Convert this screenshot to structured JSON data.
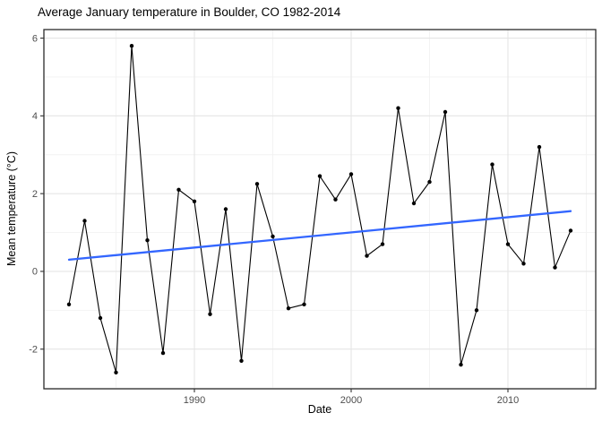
{
  "title": "Average January temperature in Boulder, CO 1982-2014",
  "colors": {
    "background": "#FFFFFF",
    "series_line": "#000000",
    "point": "#000000",
    "trend_line": "#3366FF",
    "grid_major": "#E5E5E5",
    "grid_minor": "#F2F2F2",
    "panel_border": "#2B2B2B",
    "tick_mark": "#333333",
    "tick_label": "#4D4D4D",
    "title_text": "#000000"
  },
  "chart_data": {
    "type": "line",
    "title": "Average January temperature in Boulder, CO 1982-2014",
    "xlabel": "Date",
    "ylabel": "Mean temperature (°C)",
    "legend": "none",
    "grid": true,
    "x": [
      1982,
      1983,
      1984,
      1985,
      1986,
      1987,
      1988,
      1989,
      1990,
      1991,
      1992,
      1993,
      1994,
      1995,
      1996,
      1997,
      1998,
      1999,
      2000,
      2001,
      2002,
      2003,
      2004,
      2005,
      2006,
      2007,
      2008,
      2009,
      2010,
      2011,
      2012,
      2013,
      2014
    ],
    "values": [
      -0.85,
      1.3,
      -1.2,
      -2.6,
      5.8,
      0.8,
      -2.1,
      2.1,
      1.8,
      -1.1,
      1.6,
      -2.3,
      2.25,
      0.9,
      -0.95,
      -0.85,
      2.45,
      1.85,
      2.5,
      0.4,
      0.7,
      4.2,
      1.75,
      2.3,
      4.1,
      -2.4,
      -1.0,
      2.75,
      0.7,
      0.2,
      3.2,
      0.1,
      1.05
    ],
    "trend": {
      "name": "linear-fit",
      "x": [
        1982,
        2014
      ],
      "y": [
        0.3,
        1.55
      ]
    },
    "x_ticks": [
      1990,
      2000,
      2010
    ],
    "x_tick_labels": [
      "1990",
      "2000",
      "2010"
    ],
    "x_minor_ticks": [
      1985,
      1995,
      2005,
      2015
    ],
    "y_ticks": [
      -2,
      0,
      2,
      4,
      6
    ],
    "y_tick_labels": [
      "-2",
      "0",
      "2",
      "4",
      "6"
    ],
    "y_minor_ticks": [
      -3,
      -1,
      1,
      3,
      5
    ],
    "xlim": [
      1980.4,
      2015.6
    ],
    "ylim": [
      -3.02,
      6.22
    ]
  }
}
